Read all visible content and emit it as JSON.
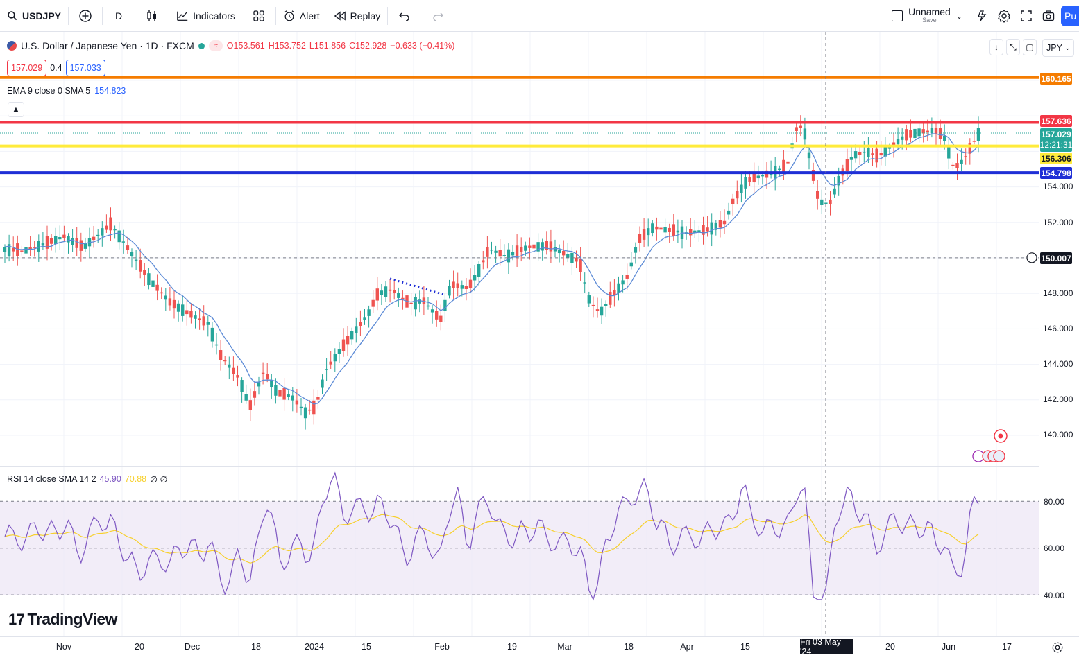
{
  "toolbar": {
    "symbol": "USDJPY",
    "interval": "D",
    "indicators_label": "Indicators",
    "alert_label": "Alert",
    "replay_label": "Replay",
    "layout_name": "Unnamed",
    "layout_sub": "Save",
    "publish_label": "Pu"
  },
  "legend": {
    "title": "U.S. Dollar / Japanese Yen · 1D · FXCM",
    "open": "O153.561",
    "high": "H153.752",
    "low": "L151.856",
    "close": "C152.928",
    "change": "−0.633 (−0.41%)",
    "sell_price": "157.029",
    "spread": "0.4",
    "buy_price": "157.033",
    "ema_label": "EMA 9 close 0 SMA 5",
    "ema_value": "154.823",
    "rsi_label": "RSI 14 close SMA 14 2",
    "rsi_value": "45.90",
    "rsi_sma_value": "70.88",
    "rsi_extra": "∅ ∅"
  },
  "currency": "JPY",
  "price_axis": {
    "ticks": [
      "154.000",
      "152.000",
      "150.000",
      "148.000",
      "146.000",
      "144.000",
      "142.000",
      "140.000"
    ],
    "rsi_ticks": [
      "80.00",
      "60.00",
      "40.00"
    ],
    "tags": {
      "orange_line": "160.165",
      "red_line": "157.636",
      "current_price": "157.029",
      "countdown": "12:21:31",
      "yellow_line": "156.306",
      "blue_line": "154.798",
      "crosshair_price": "150.007"
    }
  },
  "time_axis": {
    "labels": [
      "Nov",
      "20",
      "Dec",
      "18",
      "2024",
      "15",
      "Feb",
      "19",
      "Mar",
      "18",
      "Apr",
      "15",
      "20",
      "Jun",
      "17"
    ],
    "crosshair_date": "Fri 03 May '24"
  },
  "brand": "TradingView",
  "colors": {
    "up": "#26a69a",
    "down": "#ef5350",
    "orange_line": "#f57c00",
    "red_line": "#f23645",
    "yellow_line": "#ffeb3b",
    "blue_line": "#1f2fd6",
    "ema": "#5b8ad6",
    "rsi": "#7e57c2",
    "rsi_sma": "#f7d02c"
  }
}
